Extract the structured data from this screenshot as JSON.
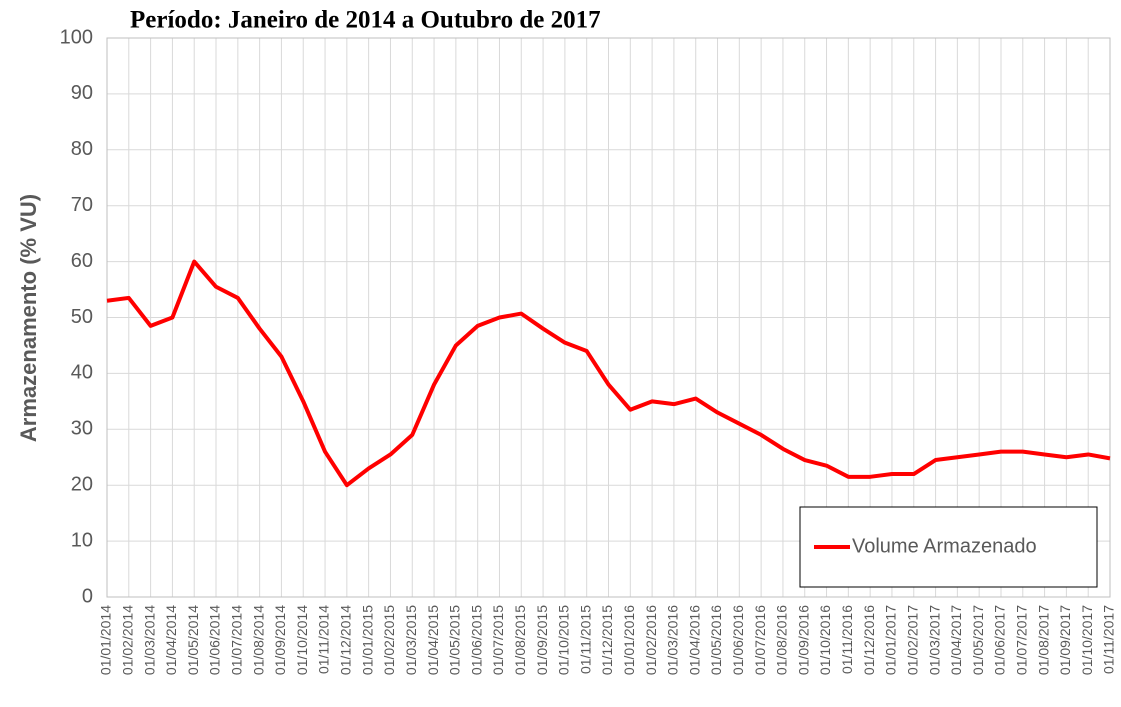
{
  "chart_data": {
    "type": "line",
    "title": "Período: Janeiro de 2014 a Outubro de 2017",
    "ylabel": "Armazenamento (% VU)",
    "categories": [
      "01/01/2014",
      "01/02/2014",
      "01/03/2014",
      "01/04/2014",
      "01/05/2014",
      "01/06/2014",
      "01/07/2014",
      "01/08/2014",
      "01/09/2014",
      "01/10/2014",
      "01/11/2014",
      "01/12/2014",
      "01/01/2015",
      "01/02/2015",
      "01/03/2015",
      "01/04/2015",
      "01/05/2015",
      "01/06/2015",
      "01/07/2015",
      "01/08/2015",
      "01/09/2015",
      "01/10/2015",
      "01/11/2015",
      "01/12/2015",
      "01/01/2016",
      "01/02/2016",
      "01/03/2016",
      "01/04/2016",
      "01/05/2016",
      "01/06/2016",
      "01/07/2016",
      "01/08/2016",
      "01/09/2016",
      "01/10/2016",
      "01/11/2016",
      "01/12/2016",
      "01/01/2017",
      "01/02/2017",
      "01/03/2017",
      "01/04/2017",
      "01/05/2017",
      "01/06/2017",
      "01/07/2017",
      "01/08/2017",
      "01/09/2017",
      "01/10/2017",
      "01/11/2017"
    ],
    "series": [
      {
        "name": "Volume Armazenado",
        "color": "#ff0000",
        "values": [
          53,
          53.5,
          48.5,
          50,
          60,
          55.5,
          53.5,
          48,
          43,
          35,
          26,
          20,
          23,
          25.5,
          29,
          38,
          45,
          48.5,
          50,
          50.7,
          48,
          45.5,
          44,
          38,
          33.5,
          35,
          34.5,
          35.5,
          33,
          31,
          29,
          26.5,
          24.5,
          23.5,
          21.5,
          21.5,
          22,
          22,
          24.5,
          25,
          25.5,
          26,
          26,
          25.5,
          25,
          25.5,
          24.8
        ]
      }
    ],
    "ylim": [
      0,
      100
    ],
    "yticks": [
      0,
      10,
      20,
      30,
      40,
      50,
      60,
      70,
      80,
      90,
      100
    ],
    "grid": true,
    "legend": "lower right"
  }
}
